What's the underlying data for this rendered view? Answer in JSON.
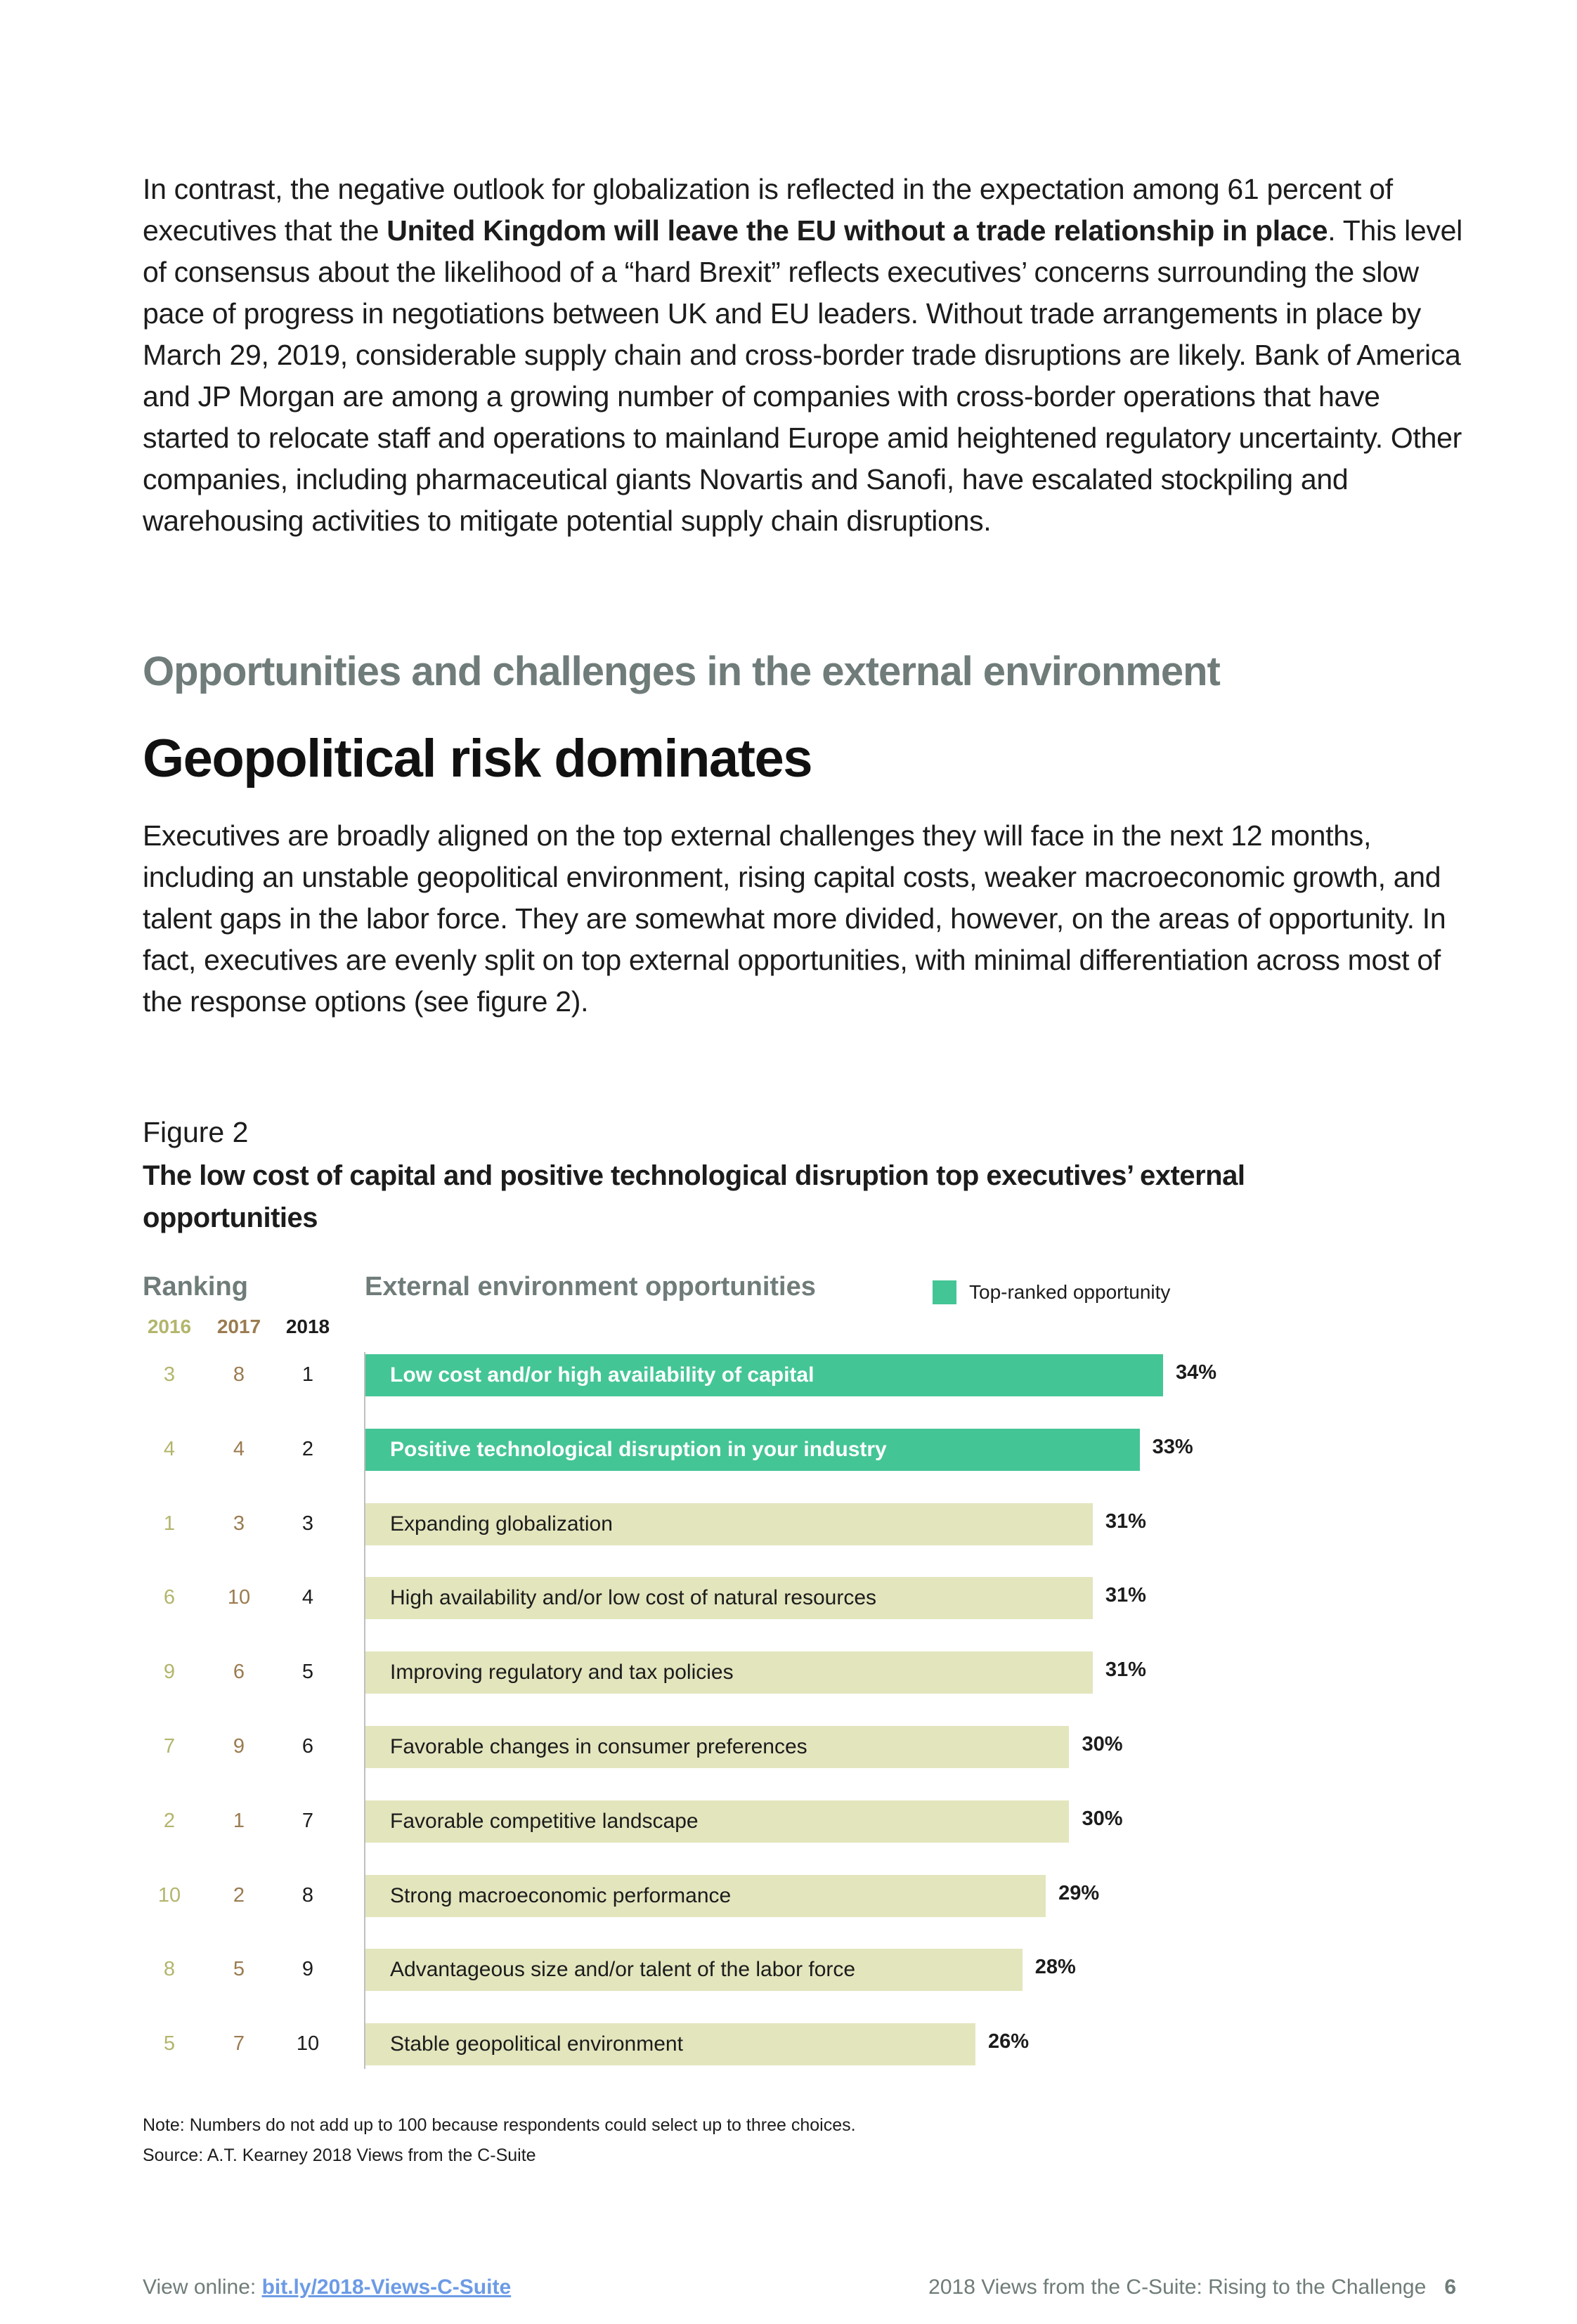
{
  "para1": {
    "pre": "In contrast, the negative outlook for globalization is reflected in the expectation among 61 percent of executives that the ",
    "bold": "United Kingdom will leave the EU without a trade relationship in place",
    "post": ". This level of consensus about the likelihood of a “hard Brexit” reflects executives’ concerns surrounding the slow pace of progress in negotiations between UK and EU leaders. Without trade arrangements in place by March 29, 2019, considerable supply chain and cross-border trade disruptions are likely. Bank of America and JP Morgan are among a growing number of companies with cross-border operations that have started to relocate staff and operations to mainland Europe amid heightened regulatory uncertainty. Other companies, including pharmaceutical giants Novartis and Sanofi, have escalated stockpiling and warehousing activities to mitigate potential supply chain disruptions."
  },
  "section_heading": "Opportunities and challenges in the external environment",
  "heading": "Geopolitical risk dominates",
  "para2": "Executives are broadly aligned on the top external challenges they will face in the next 12 months, including an unstable geopolitical environment, rising capital costs, weaker macroeconomic growth, and talent gaps in the labor force. They are somewhat more divided, however, on the areas of opportunity. In fact, executives are evenly split on top external opportunities, with minimal differentiation across most of the response options (see figure 2).",
  "figure": {
    "label": "Figure 2",
    "title": "The low cost of capital and positive technological disruption top executives’ external opportunities"
  },
  "colors": {
    "top": "#44c596",
    "other": "#e3e5bd",
    "y2016": "#b3b56c",
    "y2017": "#9b7b50",
    "y2018": "#1c1c1c"
  },
  "chart_data": {
    "type": "bar",
    "orientation": "horizontal",
    "ranking_header": "Ranking",
    "title": "External environment opportunities",
    "legend": "Top-ranked opportunity",
    "years": [
      "2016",
      "2017",
      "2018"
    ],
    "xlim": [
      0,
      34
    ],
    "rows": [
      {
        "label": "Low cost and/or high availability of capital",
        "value": 34,
        "pct": "34%",
        "r2016": "3",
        "r2017": "8",
        "r2018": "1",
        "top": true
      },
      {
        "label": "Positive technological disruption in your industry",
        "value": 33,
        "pct": "33%",
        "r2016": "4",
        "r2017": "4",
        "r2018": "2",
        "top": true
      },
      {
        "label": "Expanding globalization",
        "value": 31,
        "pct": "31%",
        "r2016": "1",
        "r2017": "3",
        "r2018": "3",
        "top": false
      },
      {
        "label": "High availability and/or low cost of natural resources",
        "value": 31,
        "pct": "31%",
        "r2016": "6",
        "r2017": "10",
        "r2018": "4",
        "top": false
      },
      {
        "label": "Improving regulatory and tax policies",
        "value": 31,
        "pct": "31%",
        "r2016": "9",
        "r2017": "6",
        "r2018": "5",
        "top": false
      },
      {
        "label": "Favorable changes in consumer preferences",
        "value": 30,
        "pct": "30%",
        "r2016": "7",
        "r2017": "9",
        "r2018": "6",
        "top": false
      },
      {
        "label": "Favorable competitive landscape",
        "value": 30,
        "pct": "30%",
        "r2016": "2",
        "r2017": "1",
        "r2018": "7",
        "top": false
      },
      {
        "label": "Strong macroeconomic performance",
        "value": 29,
        "pct": "29%",
        "r2016": "10",
        "r2017": "2",
        "r2018": "8",
        "top": false
      },
      {
        "label": "Advantageous size and/or talent of the labor force",
        "value": 28,
        "pct": "28%",
        "r2016": "8",
        "r2017": "5",
        "r2018": "9",
        "top": false
      },
      {
        "label": "Stable geopolitical environment",
        "value": 26,
        "pct": "26%",
        "r2016": "5",
        "r2017": "7",
        "r2018": "10",
        "top": false
      }
    ]
  },
  "note": "Note: Numbers do not add up to 100 because respondents could select up to three choices.",
  "source": "Source: A.T. Kearney 2018 Views from the C-Suite",
  "footer": {
    "view_online": "View online: ",
    "link": "bit.ly/2018-Views-C-Suite",
    "publication": "2018 Views from the C-Suite: Rising to the Challenge",
    "page": "6"
  }
}
